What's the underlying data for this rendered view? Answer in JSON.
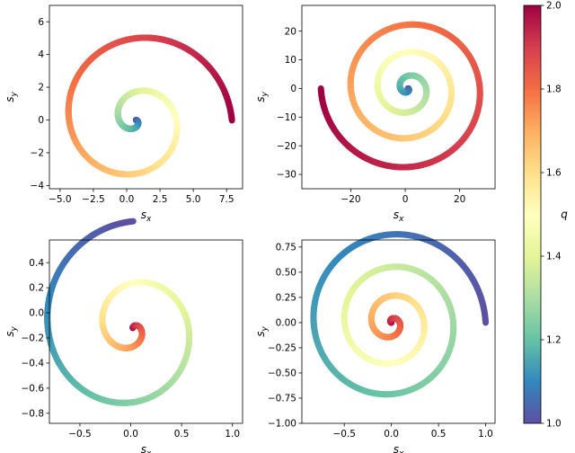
{
  "colorbar": {
    "label": "q",
    "min": 1.0,
    "max": 2.0,
    "ticks": [
      1.0,
      1.2,
      1.4,
      1.6,
      1.8,
      2.0
    ],
    "tick_labels": [
      "1.0",
      "1.2",
      "1.4",
      "1.6",
      "1.8",
      "2.0"
    ],
    "colormap": "Spectral_r",
    "colors": [
      "#5e4fa2",
      "#3288bd",
      "#66c2a5",
      "#abdda4",
      "#e6f598",
      "#ffffbf",
      "#fee08b",
      "#fdae61",
      "#f46d43",
      "#d53e4f",
      "#9e0142"
    ]
  },
  "chart_data": [
    {
      "type": "scatter",
      "panel": "top-left",
      "xlabel": "s",
      "xlabel_sub": "x",
      "ylabel": "s",
      "ylabel_sub": "y",
      "xlim": [
        -5.8,
        8.7
      ],
      "ylim": [
        -4.2,
        7.0
      ],
      "xticks": [
        -5.0,
        -2.5,
        0.0,
        2.5,
        5.0,
        7.5
      ],
      "xtick_labels": [
        "−5.0",
        "−2.5",
        "0.0",
        "2.5",
        "5.0",
        "7.5"
      ],
      "yticks": [
        -4,
        -2,
        0,
        2,
        4,
        6
      ],
      "ytick_labels": [
        "−4",
        "−2",
        "0",
        "2",
        "4",
        "6"
      ],
      "curve": {
        "kind": "spiral",
        "center": [
          0.7,
          0.0
        ],
        "scale_x": 1.0,
        "scale_y": 0.82,
        "a": 0.08,
        "b": 2.1,
        "theta_end": 12.57,
        "q_start": 1.0,
        "q_end": 2.0,
        "theta0": 0.0
      },
      "points": [
        [
          0.7,
          0.0
        ],
        [
          2.3,
          0.7
        ],
        [
          -0.5,
          2.6
        ],
        [
          -5.0,
          0.8
        ],
        [
          0.8,
          -3.6
        ],
        [
          7.9,
          0.0
        ],
        [
          1.0,
          6.6
        ]
      ]
    },
    {
      "type": "scatter",
      "panel": "top-right",
      "xlabel": "s",
      "xlabel_sub": "x",
      "ylabel": "s",
      "ylabel_sub": "y",
      "xlim": [
        -38,
        33
      ],
      "ylim": [
        -35,
        29
      ],
      "xticks": [
        -20,
        0,
        20
      ],
      "xtick_labels": [
        "−20",
        "0",
        "20"
      ],
      "yticks": [
        -30,
        -20,
        -10,
        0,
        10,
        20
      ],
      "ytick_labels": [
        "−30",
        "−20",
        "−10",
        "0",
        "10",
        "20"
      ],
      "curve": {
        "kind": "spiral",
        "center": [
          1.0,
          0.0
        ],
        "scale_x": 1.0,
        "scale_y": 0.94,
        "a": 0.32,
        "b": 2.2,
        "theta_end": 21.99,
        "q_start": 1.0,
        "q_end": 2.0,
        "theta0": 0.0
      },
      "points": [
        [
          1.0,
          0.0
        ],
        [
          11.0,
          0.0
        ],
        [
          -21.0,
          0.0
        ],
        [
          30.0,
          0.0
        ],
        [
          -35.0,
          0.5
        ],
        [
          0.0,
          -32.0
        ],
        [
          0.0,
          26.0
        ]
      ]
    },
    {
      "type": "scatter",
      "panel": "bottom-left",
      "xlabel": "s",
      "xlabel_sub": "x",
      "ylabel": "s",
      "ylabel_sub": "y",
      "xlim": [
        -0.8,
        1.1
      ],
      "ylim": [
        -0.88,
        0.58
      ],
      "xticks": [
        -0.5,
        0.0,
        0.5,
        1.0
      ],
      "xtick_labels": [
        "−0.5",
        "0.0",
        "0.5",
        "1.0"
      ],
      "yticks": [
        -0.8,
        -0.6,
        -0.4,
        -0.2,
        0.0,
        0.2,
        0.4
      ],
      "ytick_labels": [
        "−0.8",
        "−0.6",
        "−0.4",
        "−0.2",
        "0.0",
        "0.2",
        "0.4"
      ],
      "curve": {
        "kind": "spiral",
        "center": [
          0.02,
          -0.12
        ],
        "scale_x": 1.0,
        "scale_y": 0.86,
        "a": 0.012,
        "b": 2.1,
        "theta_end": 12.57,
        "q_start": 2.0,
        "q_end": 1.0,
        "theta0": 1.57
      },
      "points": [
        [
          0.0,
          0.0
        ],
        [
          0.38,
          0.05
        ],
        [
          -0.1,
          0.52
        ],
        [
          -0.72,
          -0.1
        ],
        [
          0.1,
          -0.83
        ],
        [
          1.0,
          0.0
        ]
      ]
    },
    {
      "type": "scatter",
      "panel": "bottom-right",
      "xlabel": "s",
      "xlabel_sub": "x",
      "ylabel": "s",
      "ylabel_sub": "y",
      "xlim": [
        -0.95,
        1.1
      ],
      "ylim": [
        -1.0,
        0.82
      ],
      "xticks": [
        -0.5,
        0.0,
        0.5,
        1.0
      ],
      "xtick_labels": [
        "−0.5",
        "0.0",
        "0.5",
        "1.0"
      ],
      "yticks": [
        -1.0,
        -0.75,
        -0.5,
        -0.25,
        0.0,
        0.25,
        0.5,
        0.75
      ],
      "ytick_labels": [
        "−1.00",
        "−0.75",
        "−0.50",
        "−0.25",
        "0.00",
        "0.25",
        "0.50",
        "0.75"
      ],
      "curve": {
        "kind": "spiral",
        "center": [
          0.0,
          0.0
        ],
        "scale_x": 1.0,
        "scale_y": 0.96,
        "a": 0.0083,
        "b": 2.2,
        "theta_end": 21.99,
        "q_start": 2.0,
        "q_end": 1.0,
        "theta0": 3.14
      },
      "points": [
        [
          0.0,
          0.0
        ],
        [
          0.3,
          0.0
        ],
        [
          -0.55,
          0.0
        ],
        [
          0.83,
          0.0
        ],
        [
          -0.9,
          0.0
        ],
        [
          1.0,
          0.0
        ],
        [
          0.0,
          0.75
        ],
        [
          0.0,
          -0.93
        ]
      ]
    }
  ]
}
